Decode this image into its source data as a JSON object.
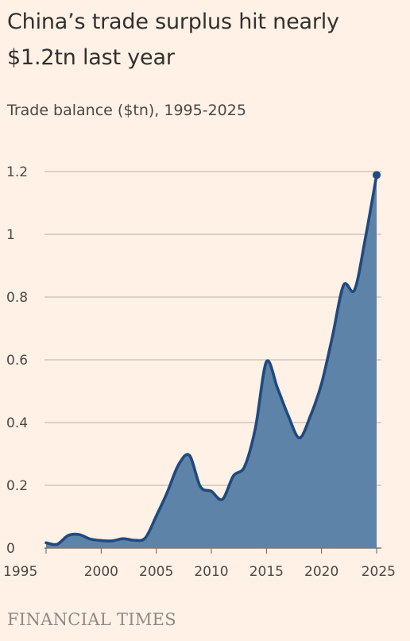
{
  "title": "China’s trade surplus hit nearly $1.2tn last year",
  "subtitle": "Trade balance ($tn), 1995-2025",
  "source": "FINANCIAL TIMES",
  "colors": {
    "background": "#fff1e5",
    "line": "#1f4a80",
    "area": "#5e83a8",
    "grid": "#b9afa6",
    "text": "#33302e"
  },
  "chart_data": {
    "type": "area",
    "x": [
      1995,
      1996,
      1997,
      1998,
      1999,
      2000,
      2001,
      2002,
      2003,
      2004,
      2005,
      2006,
      2007,
      2008,
      2009,
      2010,
      2011,
      2012,
      2013,
      2014,
      2015,
      2016,
      2017,
      2018,
      2019,
      2020,
      2021,
      2022,
      2023,
      2024,
      2025
    ],
    "values": [
      0.017,
      0.012,
      0.04,
      0.043,
      0.029,
      0.024,
      0.023,
      0.03,
      0.025,
      0.032,
      0.102,
      0.178,
      0.264,
      0.296,
      0.196,
      0.181,
      0.155,
      0.23,
      0.259,
      0.383,
      0.594,
      0.51,
      0.42,
      0.351,
      0.422,
      0.524,
      0.676,
      0.838,
      0.823,
      0.992,
      1.189
    ],
    "title": "",
    "xlabel": "",
    "ylabel": "",
    "xlim": [
      1995,
      2025
    ],
    "ylim": [
      0,
      1.2
    ],
    "xticks": [
      "1995",
      "2000",
      "2005",
      "2010",
      "2015",
      "2020",
      "2025"
    ],
    "yticks": [
      "0",
      "0.2",
      "0.4",
      "0.6",
      "0.8",
      "1",
      "1.2"
    ],
    "grid": true,
    "legend": "none",
    "highlight_last_point": true
  }
}
